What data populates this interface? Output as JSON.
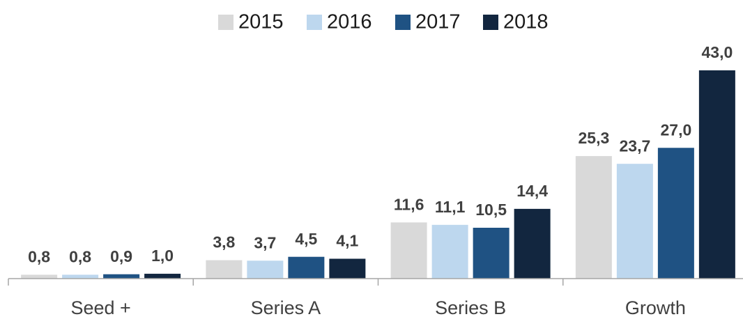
{
  "chart_data": {
    "type": "bar",
    "categories": [
      "Seed +",
      "Series A",
      "Series B",
      "Growth"
    ],
    "series": [
      {
        "name": "2015",
        "color": "#d9d9d9",
        "values": [
          0.8,
          3.8,
          11.6,
          25.3
        ],
        "value_labels": [
          "0,8",
          "3,8",
          "11,6",
          "25,3"
        ]
      },
      {
        "name": "2016",
        "color": "#bdd7ee",
        "values": [
          0.8,
          3.7,
          11.1,
          23.7
        ],
        "value_labels": [
          "0,8",
          "3,7",
          "11,1",
          "23,7"
        ]
      },
      {
        "name": "2017",
        "color": "#1f5283",
        "values": [
          0.9,
          4.5,
          10.5,
          27.0
        ],
        "value_labels": [
          "0,9",
          "4,5",
          "10,5",
          "27,0"
        ]
      },
      {
        "name": "2018",
        "color": "#12263f",
        "values": [
          1.0,
          4.1,
          14.4,
          43.0
        ],
        "value_labels": [
          "1,0",
          "4,1",
          "14,4",
          "43,0"
        ]
      }
    ],
    "legend": "top"
  }
}
